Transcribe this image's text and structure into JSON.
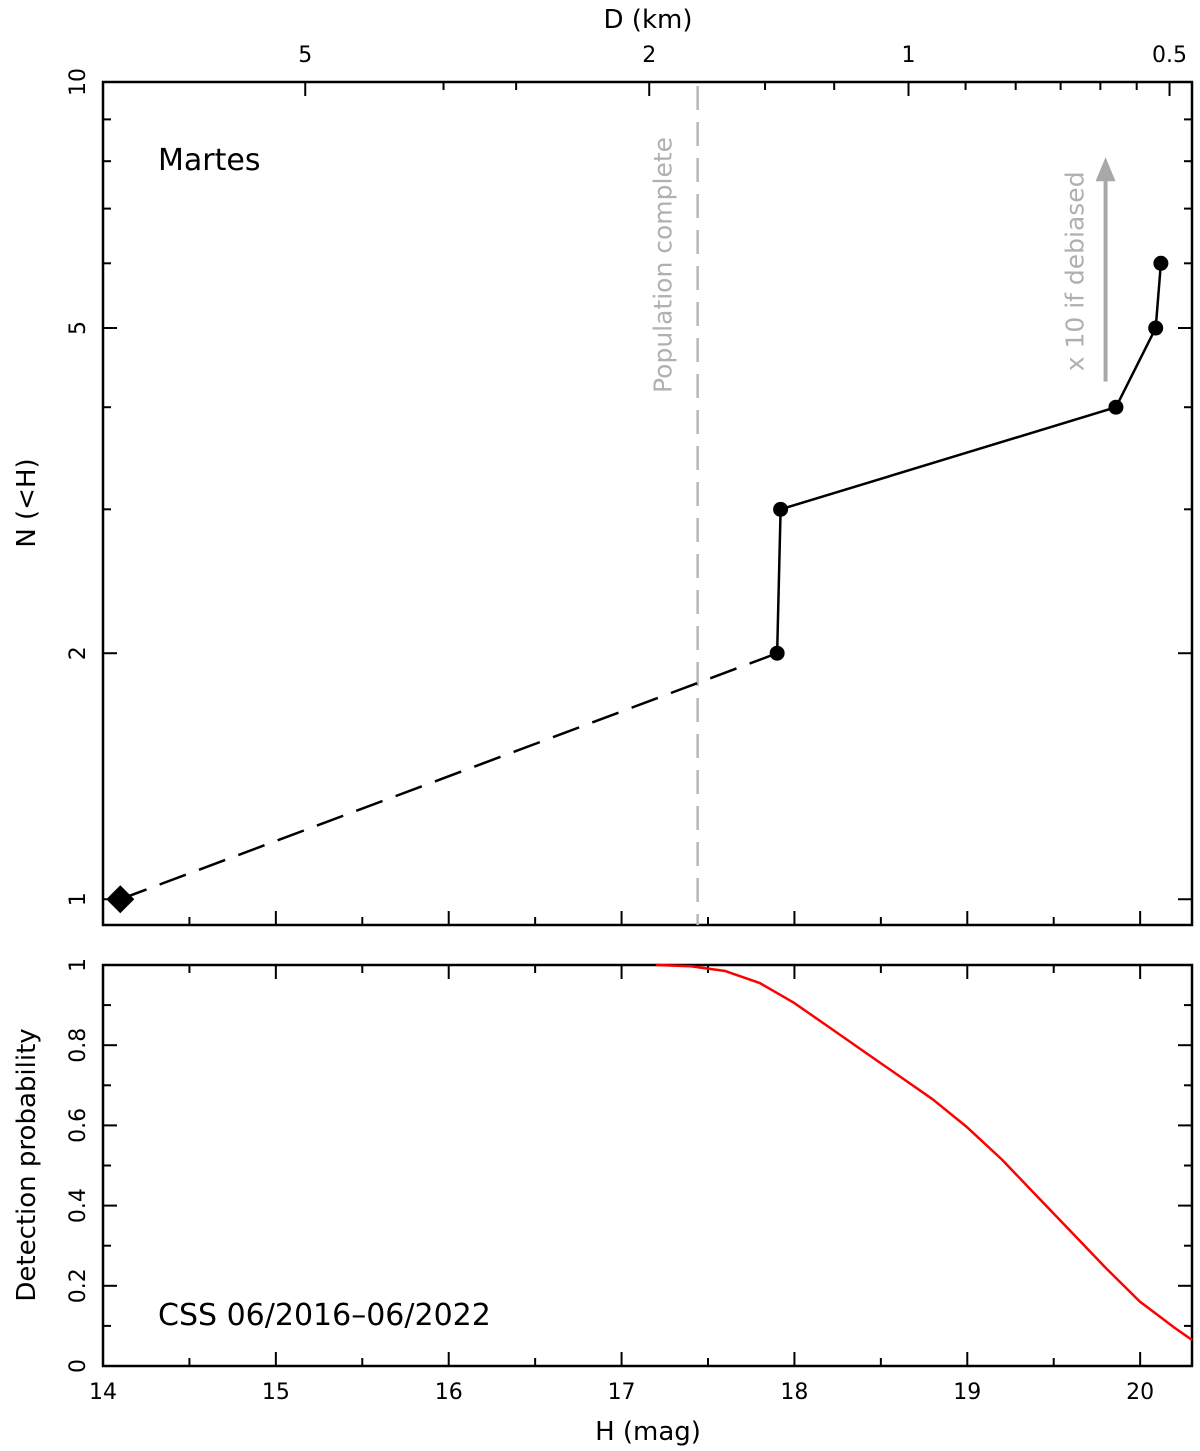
{
  "chart_data": [
    {
      "type": "line",
      "title": "Martes",
      "xlabel_top": "D (km)",
      "ylabel": "N (<H)",
      "xlim": [
        14,
        20.3
      ],
      "ylim": [
        0.93,
        10
      ],
      "y_scale": "log",
      "yticks_major": [
        1,
        2,
        5,
        10
      ],
      "top_axis_ticks": [
        {
          "label": "5",
          "H": 15.17
        },
        {
          "label": "2",
          "H": 17.16
        },
        {
          "label": "1",
          "H": 18.66
        },
        {
          "label": "0.5",
          "H": 20.17
        }
      ],
      "series": [
        {
          "style": "solid-markers",
          "x": [
            17.9,
            17.92,
            19.86,
            20.09,
            20.12
          ],
          "y": [
            2,
            3,
            4,
            5,
            6
          ]
        },
        {
          "style": "dashed",
          "x": [
            14.1,
            17.9
          ],
          "y": [
            1,
            2
          ]
        },
        {
          "style": "diamond",
          "x": [
            14.1
          ],
          "y": [
            1
          ]
        }
      ],
      "annotations": {
        "completeness_line": {
          "x": 17.44,
          "label": "Population complete"
        },
        "debias_arrow": {
          "x": 19.8,
          "y_from": 4.3,
          "y_to": 8.0,
          "label": "x 10 if debiased"
        }
      }
    },
    {
      "type": "line",
      "annotation": "CSS 06/2016–06/2022",
      "xlabel": "H (mag)",
      "ylabel": "Detection probability",
      "xlim": [
        14,
        20.3
      ],
      "ylim": [
        0,
        1
      ],
      "xticks": [
        "14",
        "15",
        "16",
        "17",
        "18",
        "19",
        "20"
      ],
      "yticks": [
        "0",
        "0.2",
        "0.4",
        "0.6",
        "0.8",
        "1"
      ],
      "series": [
        {
          "color": "#ff0000",
          "x": [
            17.2,
            17.4,
            17.6,
            17.8,
            18.0,
            18.2,
            18.4,
            18.6,
            18.8,
            19.0,
            19.2,
            19.4,
            19.6,
            19.8,
            20.0,
            20.2,
            20.3
          ],
          "y": [
            1.0,
            0.997,
            0.985,
            0.955,
            0.905,
            0.845,
            0.785,
            0.725,
            0.665,
            0.595,
            0.515,
            0.425,
            0.335,
            0.245,
            0.16,
            0.095,
            0.065
          ]
        }
      ]
    }
  ]
}
